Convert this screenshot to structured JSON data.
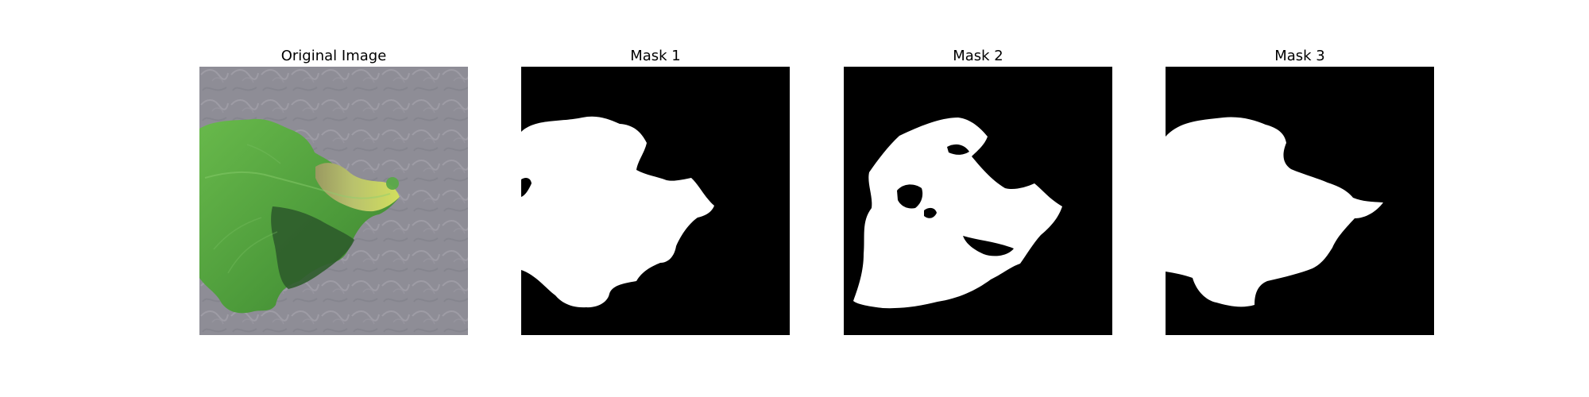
{
  "panels": [
    {
      "title": "Original Image"
    },
    {
      "title": "Mask 1"
    },
    {
      "title": "Mask 2"
    },
    {
      "title": "Mask 3"
    }
  ],
  "colors": {
    "background": "#ffffff",
    "mask_background": "#000000",
    "mask_foreground": "#ffffff",
    "surface_gray": "#8f8e96",
    "leaf_green": "#4f9a3c",
    "leaf_dark": "#2f5a2a",
    "leaf_yellow": "#c9d86a"
  }
}
